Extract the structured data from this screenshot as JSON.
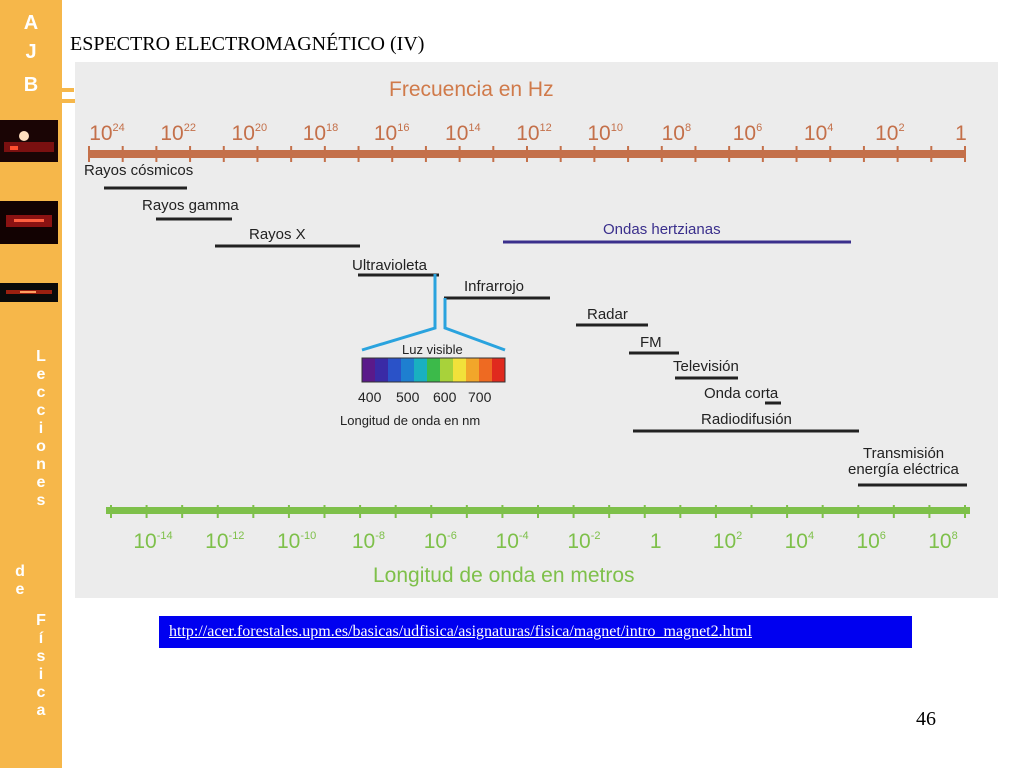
{
  "sidebar": {
    "logo": [
      "A",
      "J",
      "B"
    ],
    "word1": [
      "L",
      "e",
      "c",
      "c",
      "i",
      "o",
      "n",
      "e",
      "s"
    ],
    "word2": [
      "d",
      "e"
    ],
    "word3": [
      "F",
      "í",
      "s",
      "i",
      "c",
      "a"
    ],
    "background": "#f6b74a"
  },
  "slide": {
    "title": "ESPECTRO ELECTROMAGNÉTICO (IV)",
    "link": "http://acer.forestales.upm.es/basicas/udfisica/asignaturas/fisica/magnet/intro_magnet2.html",
    "page_number": "46"
  },
  "diagram": {
    "freq_title": "Frecuencia en Hz",
    "freq_ticks": [
      {
        "base": "10",
        "exp": "24"
      },
      {
        "base": "10",
        "exp": "22"
      },
      {
        "base": "10",
        "exp": "20"
      },
      {
        "base": "10",
        "exp": "18"
      },
      {
        "base": "10",
        "exp": "16"
      },
      {
        "base": "10",
        "exp": "14"
      },
      {
        "base": "10",
        "exp": "12"
      },
      {
        "base": "10",
        "exp": "10"
      },
      {
        "base": "10",
        "exp": "8"
      },
      {
        "base": "10",
        "exp": "6"
      },
      {
        "base": "10",
        "exp": "4"
      },
      {
        "base": "10",
        "exp": "2"
      },
      {
        "base": "1",
        "exp": ""
      }
    ],
    "wave_title": "Longitud de onda en metros",
    "wave_ticks": [
      {
        "base": "10",
        "exp": "-14"
      },
      {
        "base": "10",
        "exp": "-12"
      },
      {
        "base": "10",
        "exp": "-10"
      },
      {
        "base": "10",
        "exp": "-8"
      },
      {
        "base": "10",
        "exp": "-6"
      },
      {
        "base": "10",
        "exp": "-4"
      },
      {
        "base": "10",
        "exp": "-2"
      },
      {
        "base": "1",
        "exp": ""
      },
      {
        "base": "10",
        "exp": "2"
      },
      {
        "base": "10",
        "exp": "4"
      },
      {
        "base": "10",
        "exp": "6"
      },
      {
        "base": "10",
        "exp": "8"
      }
    ],
    "bands": {
      "cosmic": "Rayos cósmicos",
      "gamma": "Rayos gamma",
      "xray": "Rayos X",
      "hertz": "Ondas hertzianas",
      "uv": "Ultravioleta",
      "ir": "Infrarrojo",
      "radar": "Radar",
      "fm": "FM",
      "tv": "Televisión",
      "short": "Onda corta",
      "broadcast": "Radiodifusión",
      "power_line1": "Transmisión",
      "power_line2": "energía eléctrica"
    },
    "visible": {
      "title": "Luz visible",
      "ticks": [
        "400",
        "500",
        "600",
        "700"
      ],
      "axis_label": "Longitud de onda en nm"
    },
    "colors": {
      "freq_axis": "#c4704a",
      "wave_axis": "#7ec04a",
      "hertz_line": "#3a2f8c",
      "visible_bracket": "#2aa3de"
    }
  }
}
